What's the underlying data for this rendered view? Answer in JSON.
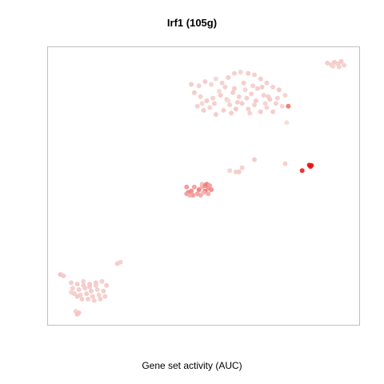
{
  "chart_data": {
    "type": "scatter",
    "title": "Irf1 (105g)",
    "xlabel": "Gene set activity (AUC)",
    "ylabel": "",
    "axes_visible": false,
    "frame": true,
    "grid": false,
    "legend": "none",
    "xlim": [
      0,
      100
    ],
    "ylim": [
      0,
      100
    ],
    "color_scale": {
      "low": "#f5e6e3",
      "high": "#ee1111"
    },
    "points": [
      [
        90.2,
        94.8,
        0.15
      ],
      [
        91.4,
        94.2,
        0.12
      ],
      [
        92.5,
        95.1,
        0.14
      ],
      [
        93.6,
        94.5,
        0.13
      ],
      [
        94.7,
        95.4,
        0.16
      ],
      [
        95.6,
        94.0,
        0.12
      ],
      [
        92.0,
        93.6,
        0.1
      ],
      [
        94.0,
        93.4,
        0.11
      ],
      [
        46.0,
        87.0,
        0.15
      ],
      [
        48.5,
        86.5,
        0.12
      ],
      [
        50.5,
        88.0,
        0.14
      ],
      [
        52.5,
        87.0,
        0.1
      ],
      [
        54.0,
        89.0,
        0.08
      ],
      [
        56.0,
        87.5,
        0.12
      ],
      [
        58.0,
        89.5,
        0.14
      ],
      [
        60.0,
        91.0,
        0.13
      ],
      [
        62.0,
        91.5,
        0.11
      ],
      [
        64.5,
        91.0,
        0.15
      ],
      [
        66.5,
        90.5,
        0.12
      ],
      [
        68.5,
        89.0,
        0.14
      ],
      [
        70.5,
        87.5,
        0.13
      ],
      [
        72.5,
        86.0,
        0.12
      ],
      [
        74.5,
        85.0,
        0.16
      ],
      [
        76.5,
        83.0,
        0.1
      ],
      [
        47.0,
        84.0,
        0.14
      ],
      [
        49.0,
        82.5,
        0.12
      ],
      [
        51.0,
        81.0,
        0.16
      ],
      [
        53.5,
        80.0,
        0.13
      ],
      [
        55.5,
        83.0,
        0.15
      ],
      [
        57.5,
        81.5,
        0.12
      ],
      [
        59.5,
        84.0,
        0.14
      ],
      [
        61.5,
        82.5,
        0.13
      ],
      [
        63.5,
        85.0,
        0.11
      ],
      [
        65.5,
        83.5,
        0.12
      ],
      [
        67.5,
        85.5,
        0.14
      ],
      [
        69.5,
        83.0,
        0.13
      ],
      [
        71.5,
        81.5,
        0.15
      ],
      [
        73.5,
        80.0,
        0.12
      ],
      [
        75.5,
        79.0,
        0.1
      ],
      [
        48.0,
        79.0,
        0.12
      ],
      [
        50.0,
        77.5,
        0.15
      ],
      [
        52.0,
        78.5,
        0.11
      ],
      [
        54.0,
        76.0,
        0.14
      ],
      [
        56.5,
        77.5,
        0.13
      ],
      [
        58.5,
        79.5,
        0.12
      ],
      [
        60.5,
        78.0,
        0.16
      ],
      [
        62.5,
        80.0,
        0.14
      ],
      [
        64.5,
        78.0,
        0.13
      ],
      [
        66.5,
        79.5,
        0.12
      ],
      [
        68.5,
        77.0,
        0.14
      ],
      [
        70.5,
        78.5,
        0.11
      ],
      [
        72.5,
        77.0,
        0.13
      ],
      [
        57.0,
        86.0,
        0.12
      ],
      [
        60.0,
        85.5,
        0.14
      ],
      [
        63.0,
        87.5,
        0.13
      ],
      [
        66.0,
        86.5,
        0.12
      ],
      [
        69.0,
        86.0,
        0.15
      ],
      [
        55.0,
        84.5,
        0.08
      ],
      [
        58.0,
        81.0,
        0.06
      ],
      [
        61.0,
        80.5,
        0.13
      ],
      [
        64.0,
        82.0,
        0.12
      ],
      [
        67.0,
        81.0,
        0.14
      ],
      [
        70.0,
        80.0,
        0.1
      ],
      [
        53.0,
        82.0,
        0.12
      ],
      [
        49.5,
        80.0,
        0.09
      ],
      [
        59.0,
        76.5,
        0.14
      ],
      [
        65.0,
        76.5,
        0.12
      ],
      [
        71.0,
        82.5,
        0.13
      ],
      [
        74.0,
        82.0,
        0.12
      ],
      [
        77.5,
        79.0,
        0.55
      ],
      [
        77.0,
        73.0,
        0.05
      ],
      [
        66.5,
        59.5,
        0.14
      ],
      [
        62.5,
        56.5,
        0.12
      ],
      [
        61.5,
        55.0,
        0.15
      ],
      [
        60.5,
        55.0,
        0.13
      ],
      [
        58.5,
        55.5,
        0.1
      ],
      [
        76.5,
        58.0,
        0.12
      ],
      [
        84.3,
        57.5,
        1.0
      ],
      [
        85.0,
        57.4,
        1.0
      ],
      [
        84.7,
        57.0,
        1.0
      ],
      [
        82.0,
        55.5,
        0.95
      ],
      [
        44.5,
        49.5,
        0.4
      ],
      [
        46.0,
        48.0,
        0.45
      ],
      [
        47.0,
        49.5,
        0.35
      ],
      [
        48.5,
        48.5,
        0.5
      ],
      [
        49.5,
        49.5,
        0.3
      ],
      [
        50.5,
        48.0,
        0.55
      ],
      [
        51.5,
        49.0,
        0.4
      ],
      [
        52.5,
        48.5,
        0.45
      ],
      [
        45.0,
        47.5,
        0.5
      ],
      [
        46.5,
        46.5,
        0.4
      ],
      [
        48.0,
        47.0,
        0.35
      ],
      [
        49.0,
        46.5,
        0.3
      ],
      [
        50.0,
        47.5,
        0.25
      ],
      [
        51.5,
        47.0,
        0.3
      ],
      [
        44.5,
        47.0,
        0.35
      ],
      [
        49.5,
        50.5,
        0.2
      ],
      [
        50.5,
        50.0,
        0.45
      ],
      [
        51.0,
        50.5,
        0.5
      ],
      [
        52.0,
        50.0,
        0.35
      ],
      [
        45.5,
        46.5,
        0.3
      ],
      [
        3.5,
        17.5,
        0.18
      ],
      [
        4.5,
        17.0,
        0.15
      ],
      [
        22.0,
        21.5,
        0.14
      ],
      [
        23.0,
        22.0,
        0.12
      ],
      [
        7.0,
        14.5,
        0.13
      ],
      [
        9.0,
        14.0,
        0.15
      ],
      [
        11.0,
        15.0,
        0.12
      ],
      [
        13.0,
        14.0,
        0.14
      ],
      [
        15.0,
        14.5,
        0.13
      ],
      [
        17.0,
        15.0,
        0.12
      ],
      [
        18.5,
        13.5,
        0.15
      ],
      [
        7.5,
        12.5,
        0.12
      ],
      [
        9.5,
        12.0,
        0.14
      ],
      [
        11.5,
        12.5,
        0.13
      ],
      [
        13.5,
        11.5,
        0.15
      ],
      [
        15.5,
        12.0,
        0.12
      ],
      [
        17.5,
        11.5,
        0.14
      ],
      [
        8.0,
        10.5,
        0.13
      ],
      [
        10.0,
        10.0,
        0.12
      ],
      [
        12.0,
        10.5,
        0.15
      ],
      [
        14.0,
        9.5,
        0.13
      ],
      [
        16.0,
        10.0,
        0.12
      ],
      [
        10.5,
        8.5,
        0.14
      ],
      [
        12.5,
        8.5,
        0.13
      ],
      [
        14.5,
        8.0,
        0.12
      ],
      [
        9.0,
        9.5,
        0.15
      ],
      [
        16.5,
        8.5,
        0.13
      ],
      [
        18.0,
        9.5,
        0.12
      ],
      [
        11.0,
        13.5,
        0.13
      ],
      [
        13.0,
        13.0,
        0.14
      ],
      [
        15.0,
        13.5,
        0.12
      ],
      [
        7.0,
        11.0,
        0.11
      ],
      [
        8.5,
        4.0,
        0.12
      ],
      [
        9.0,
        3.0,
        0.18
      ],
      [
        9.5,
        3.5,
        0.15
      ]
    ]
  }
}
